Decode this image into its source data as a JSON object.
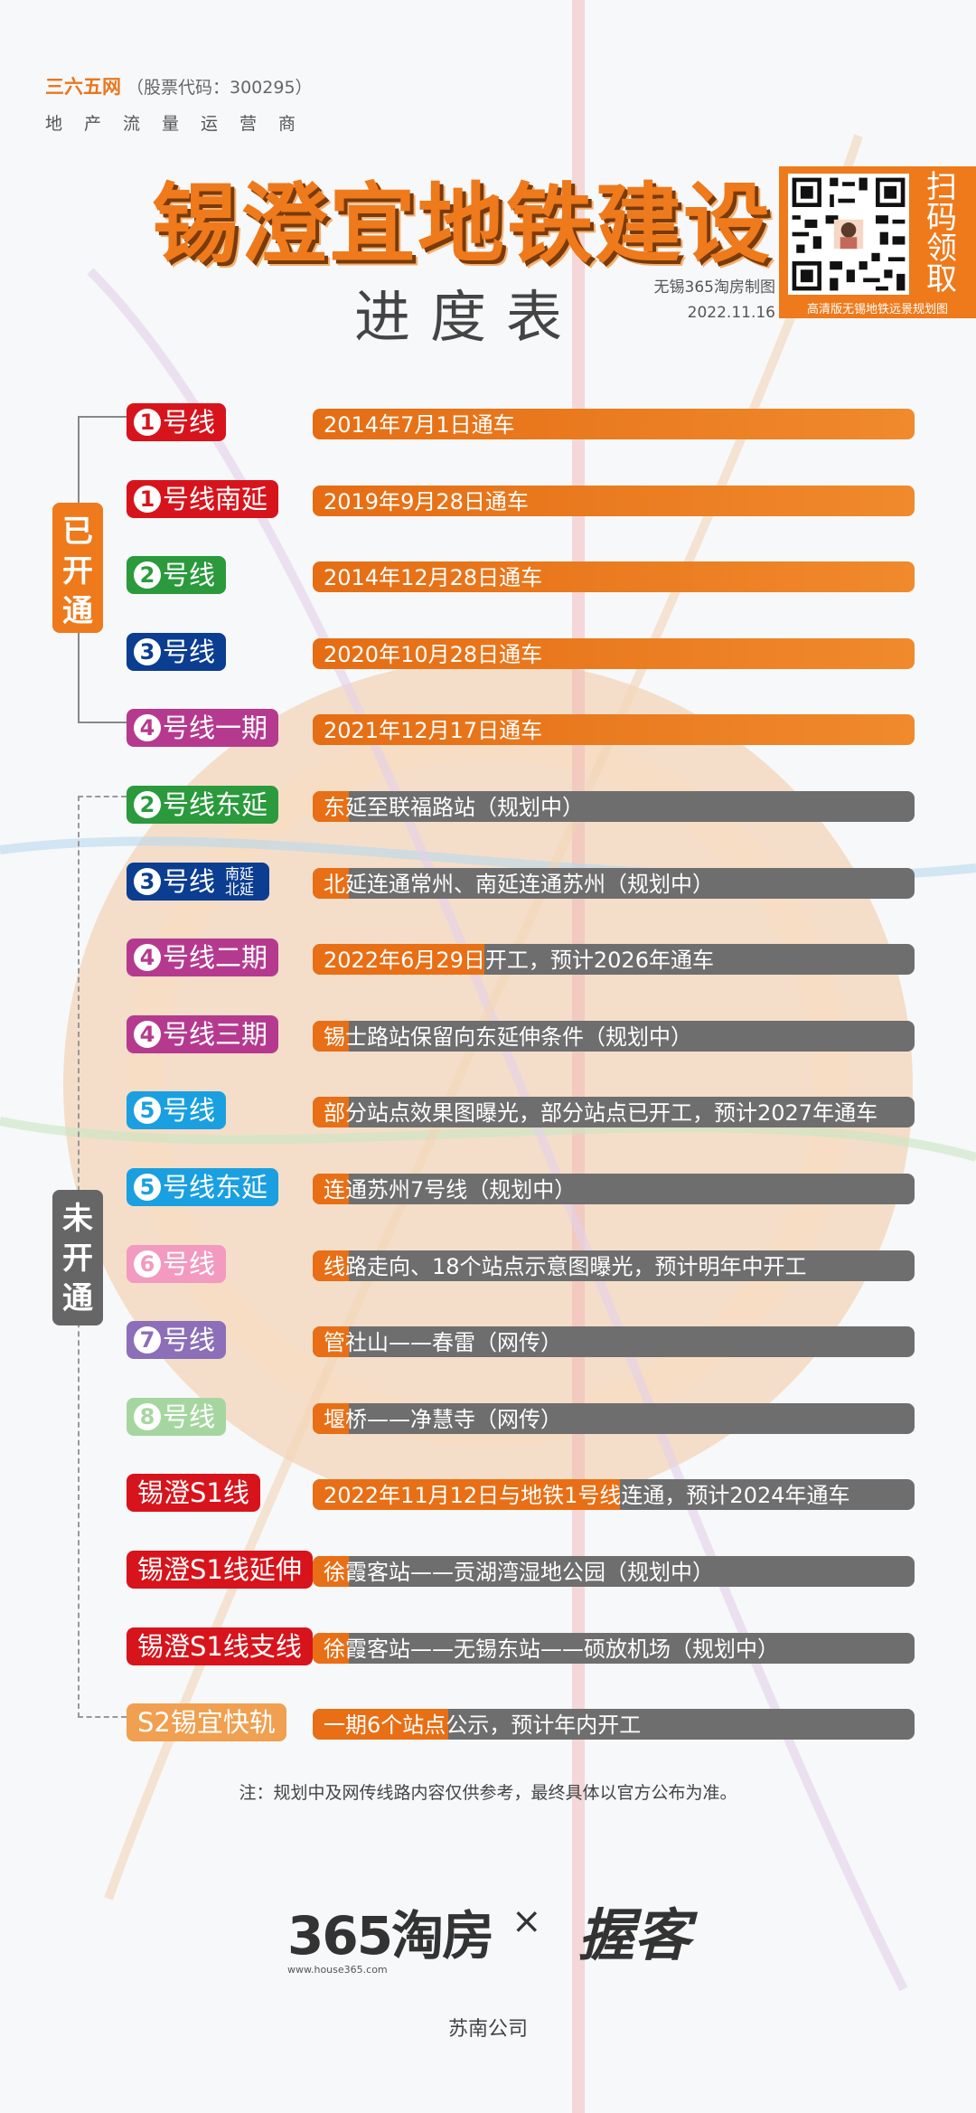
{
  "header": {
    "brand_name": "三六五网",
    "brand_code": "（股票代码：300295）",
    "brand_slogan": "地产流量运营商",
    "title": "锡澄宜地铁建设",
    "subtitle": "进度表",
    "maker": "无锡365淘房制图",
    "date": "2022.11.16",
    "qr_text": "扫码领取",
    "qr_caption": "高清版无锡地铁远景规划图"
  },
  "groups": {
    "opened": "已开通",
    "not_opened": "未开通"
  },
  "colors": {
    "orange": "#ee7a1c",
    "gray_bar": "#6e6e6e"
  },
  "lines": [
    {
      "num": "1",
      "label": "号线",
      "sub": "",
      "color": "#d7141c",
      "status": "2014年7月1日通车",
      "open": true
    },
    {
      "num": "1",
      "label": "号线南延",
      "sub": "",
      "color": "#d7141c",
      "status": "2019年9月28日通车",
      "open": true
    },
    {
      "num": "2",
      "label": "号线",
      "sub": "",
      "color": "#2a9a3c",
      "status": "2014年12月28日通车",
      "open": true
    },
    {
      "num": "3",
      "label": "号线",
      "sub": "",
      "color": "#0b3d91",
      "status": "2020年10月28日通车",
      "open": true
    },
    {
      "num": "4",
      "label": "号线一期",
      "sub": "",
      "color": "#b53a8f",
      "status": "2021年12月17日通车",
      "open": true
    },
    {
      "num": "2",
      "label": "号线东延",
      "sub": "",
      "color": "#2a9a3c",
      "status": "东延至联福路站（规划中）",
      "open": false
    },
    {
      "num": "3",
      "label": "号线",
      "sub": "南延 北延",
      "color": "#0b3d91",
      "status": "北延连通常州、南延连通苏州（规划中）",
      "open": false
    },
    {
      "num": "4",
      "label": "号线二期",
      "sub": "",
      "color": "#b53a8f",
      "status": "2022年6月29日开工，预计2026年通车",
      "open": false,
      "accent": 190
    },
    {
      "num": "4",
      "label": "号线三期",
      "sub": "",
      "color": "#b53a8f",
      "status": "锡士路站保留向东延伸条件（规划中）",
      "open": false
    },
    {
      "num": "5",
      "label": "号线",
      "sub": "",
      "color": "#1aa0e0",
      "status": "部分站点效果图曝光，部分站点已开工，预计2027年通车",
      "open": false
    },
    {
      "num": "5",
      "label": "号线东延",
      "sub": "",
      "color": "#1aa0e0",
      "status": "连通苏州7号线（规划中）",
      "open": false
    },
    {
      "num": "6",
      "label": "号线",
      "sub": "",
      "color": "#f29ac0",
      "status": "线路走向、18个站点示意图曝光，预计明年中开工",
      "open": false
    },
    {
      "num": "7",
      "label": "号线",
      "sub": "",
      "color": "#8c6fb8",
      "status": "管社山——春雷（网传）",
      "open": false
    },
    {
      "num": "8",
      "label": "号线",
      "sub": "",
      "color": "#a6d6a0",
      "status": "堰桥——净慧寺（网传）",
      "open": false
    },
    {
      "num": "",
      "label": "锡澄S1线",
      "sub": "",
      "color": "#d7141c",
      "status": "2022年11月12日与地铁1号线连通，预计2024年通车",
      "open": false,
      "accent": 340
    },
    {
      "num": "",
      "label": "锡澄S1线延伸",
      "sub": "",
      "color": "#d7141c",
      "status": "徐霞客站——贡湖湾湿地公园（规划中）",
      "open": false
    },
    {
      "num": "",
      "label": "锡澄S1线支线",
      "sub": "",
      "color": "#d7141c",
      "status": "徐霞客站——无锡东站——硕放机场（规划中）",
      "open": false
    },
    {
      "num": "",
      "label": "S2锡宜快轨",
      "sub": "",
      "color": "#f0a050",
      "status": "一期6个站点公示，预计年内开工",
      "open": false,
      "accent": 150
    }
  ],
  "footer": {
    "note": "注：规划中及网传线路内容仅供参考，最终具体以官方公布为准。",
    "logo_365": "365淘房",
    "logo_url": "www.house365.com",
    "times": "×",
    "logo_partner": "握客",
    "company": "苏南公司"
  }
}
